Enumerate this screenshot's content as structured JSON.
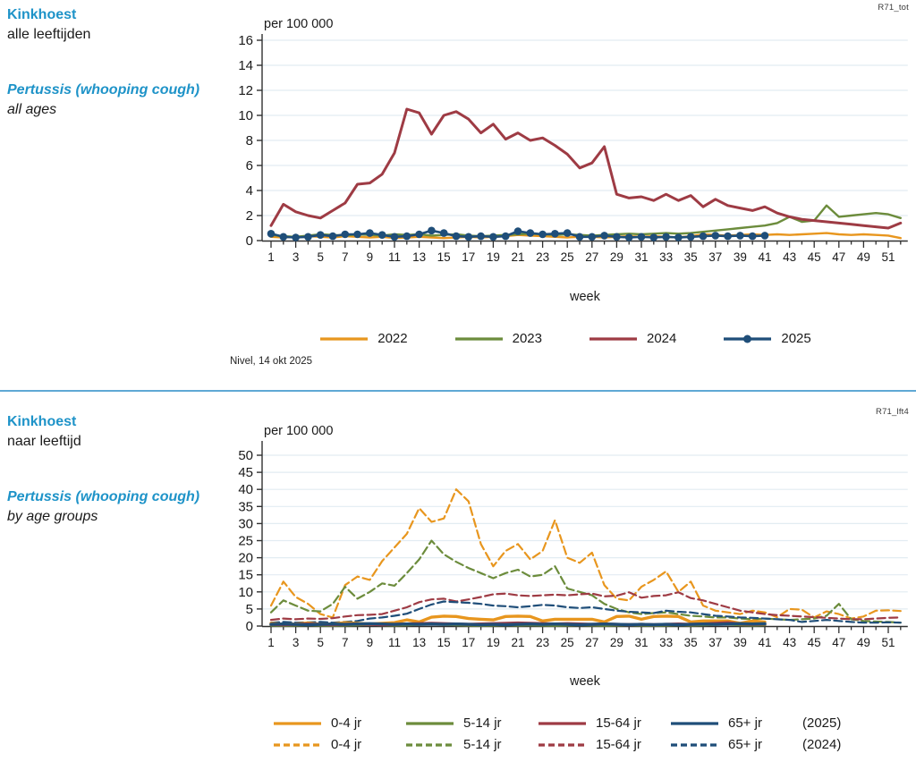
{
  "header_top": {
    "title_nl": "Kinkhoest",
    "subtitle_nl": "alle leeftijden",
    "title_en": "Pertussis (whooping cough)",
    "subtitle_en": "all ages",
    "code": "R71_tot"
  },
  "header_bottom": {
    "title_nl": "Kinkhoest",
    "subtitle_nl": "naar leeftijd",
    "title_en": "Pertussis (whooping cough)",
    "subtitle_en": "by age groups",
    "code": "R71_lft4"
  },
  "source_note": "Nivel, 14 okt 2025",
  "colors": {
    "accent_blue": "#1e93c8",
    "divider_blue": "#5fa8d5",
    "orange": "#e8961e",
    "green": "#6c8c3c",
    "red": "#9e3b44",
    "navy": "#1f4e79",
    "gridline": "#e2ecf2",
    "axis": "#303030"
  },
  "chart_data": [
    {
      "id": "top",
      "type": "line",
      "title": "Kinkhoest, alle leeftijden / Pertussis (whooping cough), all ages",
      "ylabel": "per 100 000",
      "xlabel": "week",
      "ylim": [
        0,
        16
      ],
      "yticks": [
        0,
        2,
        4,
        6,
        8,
        10,
        12,
        14,
        16
      ],
      "xticks": [
        1,
        3,
        5,
        7,
        9,
        11,
        13,
        15,
        17,
        19,
        21,
        23,
        25,
        27,
        29,
        31,
        33,
        35,
        37,
        39,
        41,
        43,
        45,
        47,
        49,
        51
      ],
      "weeks": 52,
      "grid": "horizontal",
      "legend_position": "bottom",
      "series": [
        {
          "name": "2022",
          "color": "#e8961e",
          "dash": false,
          "marker": false,
          "values": [
            0.3,
            0.25,
            0.3,
            0.35,
            0.3,
            0.25,
            0.35,
            0.3,
            0.25,
            0.3,
            0.2,
            0.25,
            0.3,
            0.25,
            0.2,
            0.25,
            0.3,
            0.25,
            0.3,
            0.35,
            0.45,
            0.4,
            0.35,
            0.3,
            0.25,
            0.3,
            0.3,
            0.25,
            0.3,
            0.35,
            0.3,
            0.35,
            0.3,
            0.25,
            0.35,
            0.5,
            0.45,
            0.4,
            0.45,
            0.5,
            0.45,
            0.5,
            0.45,
            0.5,
            0.55,
            0.6,
            0.5,
            0.45,
            0.5,
            0.45,
            0.4,
            0.2
          ]
        },
        {
          "name": "2023",
          "color": "#6c8c3c",
          "dash": false,
          "marker": false,
          "values": [
            0.45,
            0.35,
            0.3,
            0.4,
            0.5,
            0.45,
            0.4,
            0.5,
            0.45,
            0.4,
            0.5,
            0.45,
            0.5,
            0.4,
            0.45,
            0.5,
            0.4,
            0.35,
            0.4,
            0.45,
            0.5,
            0.55,
            0.5,
            0.45,
            0.5,
            0.45,
            0.4,
            0.45,
            0.5,
            0.55,
            0.5,
            0.55,
            0.6,
            0.55,
            0.6,
            0.7,
            0.8,
            0.9,
            1.0,
            1.1,
            1.2,
            1.4,
            1.9,
            1.5,
            1.6,
            2.8,
            1.9,
            2.0,
            2.1,
            2.2,
            2.1,
            1.8
          ]
        },
        {
          "name": "2024",
          "color": "#9e3b44",
          "dash": false,
          "marker": false,
          "values": [
            1.2,
            2.9,
            2.3,
            2.0,
            1.8,
            2.4,
            3.0,
            4.5,
            4.6,
            5.3,
            7.0,
            10.5,
            10.2,
            8.5,
            10.0,
            10.3,
            9.7,
            8.6,
            9.3,
            8.1,
            8.6,
            8.0,
            8.2,
            7.6,
            6.9,
            5.8,
            6.2,
            7.5,
            3.7,
            3.4,
            3.5,
            3.2,
            3.7,
            3.2,
            3.6,
            2.7,
            3.3,
            2.8,
            2.6,
            2.4,
            2.7,
            2.2,
            1.9,
            1.7,
            1.6,
            1.5,
            1.4,
            1.3,
            1.2,
            1.1,
            1.0,
            1.4
          ]
        },
        {
          "name": "2025",
          "color": "#1f4e79",
          "dash": false,
          "marker": true,
          "values": [
            0.55,
            0.3,
            0.25,
            0.3,
            0.45,
            0.35,
            0.5,
            0.5,
            0.6,
            0.45,
            0.3,
            0.35,
            0.5,
            0.8,
            0.6,
            0.35,
            0.3,
            0.35,
            0.3,
            0.35,
            0.75,
            0.6,
            0.5,
            0.55,
            0.6,
            0.3,
            0.3,
            0.4,
            0.3,
            0.25,
            0.3,
            0.25,
            0.3,
            0.25,
            0.3,
            0.35,
            0.4,
            0.35,
            0.4,
            0.35,
            0.4
          ]
        }
      ],
      "legend": [
        "2022",
        "2023",
        "2024",
        "2025"
      ]
    },
    {
      "id": "bottom",
      "type": "line",
      "title": "Kinkhoest, naar leeftijd / Pertussis (whooping cough), by age groups",
      "ylabel": "per 100 000",
      "xlabel": "week",
      "ylim": [
        0,
        50
      ],
      "yticks": [
        0,
        5,
        10,
        15,
        20,
        25,
        30,
        35,
        40,
        45,
        50
      ],
      "xticks": [
        1,
        3,
        5,
        7,
        9,
        11,
        13,
        15,
        17,
        19,
        21,
        23,
        25,
        27,
        29,
        31,
        33,
        35,
        37,
        39,
        41,
        43,
        45,
        47,
        49,
        51
      ],
      "weeks": 52,
      "grid": "horizontal",
      "legend_position": "bottom",
      "series": [
        {
          "name": "0-4 jr (2024)",
          "color": "#e8961e",
          "dash": true,
          "marker": false,
          "values": [
            6,
            13,
            8.5,
            6.5,
            3.5,
            2.5,
            12,
            14.5,
            13.5,
            19,
            23,
            27,
            34.5,
            30.5,
            31.5,
            40,
            36.5,
            24,
            17.5,
            22,
            24,
            19.5,
            22,
            31,
            20,
            18.5,
            21.5,
            12,
            8,
            7.5,
            11.5,
            13.5,
            16,
            10,
            13,
            6,
            4.5,
            4,
            3.5,
            4.5,
            4,
            2.6,
            5,
            4.8,
            2.5,
            4.3,
            3.5,
            2.2,
            2.8,
            4.5,
            4.6,
            4.4
          ]
        },
        {
          "name": "5-14 jr (2024)",
          "color": "#6c8c3c",
          "dash": true,
          "marker": false,
          "values": [
            4,
            7.5,
            6,
            4.5,
            4.3,
            6.5,
            11.5,
            8,
            10,
            12.5,
            11.8,
            15.5,
            19.5,
            25,
            21,
            18.8,
            17,
            15.5,
            14,
            15.5,
            16.5,
            14.5,
            15,
            17.5,
            11,
            10,
            9,
            6.5,
            5,
            4,
            3.5,
            3.8,
            4,
            3.5,
            3,
            2.8,
            2.5,
            2.5,
            2.2,
            2,
            2.2,
            2,
            1.8,
            2,
            2.2,
            3,
            6.5,
            2,
            1.5,
            1.3,
            1.2,
            1
          ]
        },
        {
          "name": "15-64 jr (2024)",
          "color": "#9e3b44",
          "dash": true,
          "marker": false,
          "values": [
            1.8,
            2.2,
            2.0,
            2.2,
            2.1,
            2.3,
            2.8,
            3.2,
            3.3,
            3.5,
            4.5,
            5.5,
            7.0,
            7.8,
            8.0,
            7.2,
            7.8,
            8.5,
            9.3,
            9.5,
            9.0,
            8.8,
            9.0,
            9.2,
            9.0,
            9.3,
            9.5,
            8.7,
            8.9,
            9.9,
            8.3,
            8.8,
            9.0,
            9.9,
            8.2,
            7.5,
            6.5,
            5.5,
            4.5,
            4.0,
            3.5,
            3.2,
            3.0,
            2.8,
            2.6,
            2.4,
            2.2,
            2.0,
            2.0,
            2.2,
            2.4,
            2.5
          ]
        },
        {
          "name": "65+ jr (2024)",
          "color": "#1f4e79",
          "dash": true,
          "marker": false,
          "values": [
            1.0,
            1.2,
            1.0,
            1.1,
            1.2,
            1.0,
            1.2,
            1.5,
            2.2,
            2.5,
            3.0,
            3.6,
            5.0,
            6.3,
            7.2,
            7.0,
            6.8,
            6.5,
            6.0,
            5.8,
            5.5,
            5.8,
            6.2,
            6.0,
            5.5,
            5.3,
            5.5,
            5.0,
            4.5,
            4.2,
            4.0,
            3.8,
            4.5,
            4.2,
            4.0,
            3.5,
            3.0,
            2.8,
            2.5,
            2.4,
            2.2,
            2.0,
            1.8,
            1.2,
            1.5,
            1.8,
            1.5,
            1.2,
            1.0,
            1.0,
            1.1,
            1.0
          ]
        },
        {
          "name": "0-4 jr (2025)",
          "color": "#e8961e",
          "dash": false,
          "marker": false,
          "values": [
            0.8,
            0.5,
            0.6,
            0.9,
            0.5,
            0.6,
            1.0,
            0.8,
            0.6,
            0.8,
            1.0,
            1.8,
            1.2,
            2.6,
            2.9,
            2.8,
            2.2,
            2.0,
            1.8,
            2.8,
            2.9,
            2.8,
            1.5,
            2.0,
            2.0,
            2.0,
            2.0,
            1.2,
            2.8,
            2.9,
            2.0,
            2.8,
            2.9,
            2.8,
            1.2,
            1.5,
            1.5,
            1.5,
            0.8,
            1.5,
            1.2
          ]
        },
        {
          "name": "5-14 jr (2025)",
          "color": "#6c8c3c",
          "dash": false,
          "marker": false,
          "values": [
            0.3,
            0.2,
            0.3,
            0.4,
            0.3,
            0.2,
            0.3,
            0.4,
            0.5,
            0.4,
            0.3,
            0.4,
            0.5,
            0.6,
            0.5,
            0.4,
            0.3,
            0.2,
            0.3,
            0.4,
            0.3,
            0.4,
            0.3,
            0.2,
            0.3,
            0.4,
            0.3,
            0.2,
            0.3,
            0.4,
            0.3,
            0.2,
            0.3,
            0.4,
            0.3,
            0.4,
            0.5,
            0.6,
            0.4,
            0.3,
            0.4
          ]
        },
        {
          "name": "15-64 jr (2025)",
          "color": "#9e3b44",
          "dash": false,
          "marker": false,
          "values": [
            0.5,
            0.4,
            0.5,
            0.6,
            0.5,
            0.4,
            0.5,
            0.6,
            0.5,
            0.4,
            0.5,
            0.6,
            0.7,
            0.8,
            0.7,
            0.6,
            0.5,
            0.6,
            0.7,
            0.8,
            0.9,
            0.8,
            0.7,
            0.6,
            0.7,
            0.6,
            0.5,
            0.6,
            0.5,
            0.4,
            0.5,
            0.4,
            0.5,
            0.6,
            0.5,
            0.6,
            0.8,
            1.0,
            0.6,
            0.5,
            0.6
          ]
        },
        {
          "name": "65+ jr (2025)",
          "color": "#1f4e79",
          "dash": false,
          "marker": false,
          "values": [
            0.5,
            0.6,
            0.5,
            0.4,
            0.5,
            0.6,
            0.5,
            0.6,
            0.7,
            0.6,
            0.5,
            0.6,
            0.5,
            0.6,
            0.5,
            0.6,
            0.5,
            0.4,
            0.5,
            0.4,
            0.5,
            0.6,
            0.5,
            0.6,
            0.5,
            0.4,
            0.5,
            0.6,
            0.5,
            0.4,
            0.5,
            0.4,
            0.5,
            0.4,
            0.5,
            0.6,
            0.5,
            0.6,
            0.7,
            0.6,
            0.7
          ]
        }
      ],
      "legend_rows": [
        {
          "suffix": "(2025)",
          "dashed": false,
          "labels": [
            "0-4 jr",
            "5-14 jr",
            "15-64 jr",
            "65+ jr"
          ]
        },
        {
          "suffix": "(2024)",
          "dashed": true,
          "labels": [
            "0-4 jr",
            "5-14 jr",
            "15-64 jr",
            "65+ jr"
          ]
        }
      ],
      "palette": [
        "#e8961e",
        "#6c8c3c",
        "#9e3b44",
        "#1f4e79"
      ]
    }
  ]
}
